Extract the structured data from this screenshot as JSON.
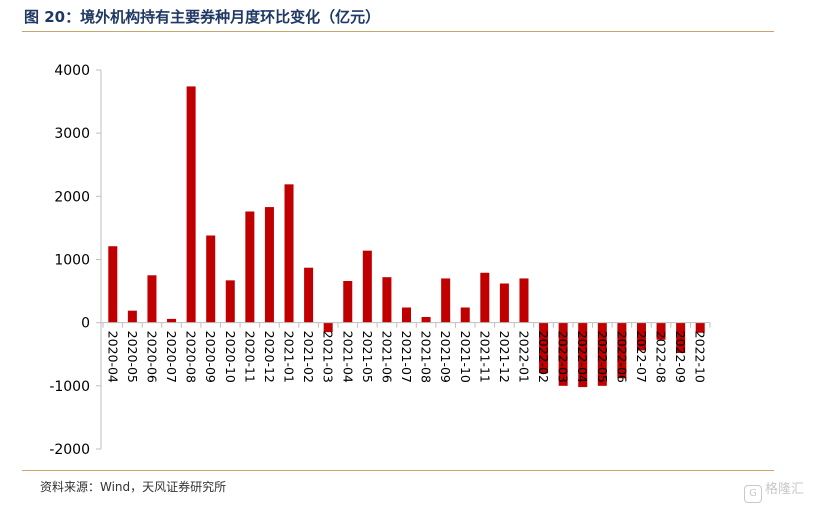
{
  "header": {
    "title": "图 20：境外机构持有主要券种月度环比变化（亿元）"
  },
  "footer": {
    "source": "资料来源：Wind，天风证券研究所",
    "watermark": "格隆汇"
  },
  "colors": {
    "bar": "#c00000",
    "axis": "#bfbfbf",
    "title": "#1f3864",
    "rule": "#c9a66b"
  },
  "chart_data": {
    "type": "bar",
    "categories": [
      "2020-04",
      "2020-05",
      "2020-06",
      "2020-07",
      "2020-08",
      "2020-09",
      "2020-10",
      "2020-11",
      "2020-12",
      "2021-01",
      "2021-02",
      "2021-03",
      "2021-04",
      "2021-05",
      "2021-06",
      "2021-07",
      "2021-08",
      "2021-09",
      "2021-10",
      "2021-11",
      "2021-12",
      "2022-01",
      "2022-02",
      "2022-03",
      "2022-04",
      "2022-05",
      "2022-06",
      "2022-07",
      "2022-08",
      "2022-09",
      "2022-10"
    ],
    "values": [
      1210,
      190,
      750,
      60,
      3740,
      1380,
      670,
      1760,
      1830,
      2190,
      870,
      -150,
      660,
      1140,
      720,
      240,
      90,
      700,
      240,
      790,
      620,
      700,
      -800,
      -1000,
      -1020,
      -1000,
      -880,
      -440,
      -270,
      -480,
      -160
    ],
    "yticks": [
      -2000,
      -1000,
      0,
      1000,
      2000,
      3000,
      4000
    ],
    "ylim": [
      -2000,
      4000
    ],
    "title": "",
    "xlabel": "",
    "ylabel": "",
    "grid": false,
    "legend": "none"
  }
}
